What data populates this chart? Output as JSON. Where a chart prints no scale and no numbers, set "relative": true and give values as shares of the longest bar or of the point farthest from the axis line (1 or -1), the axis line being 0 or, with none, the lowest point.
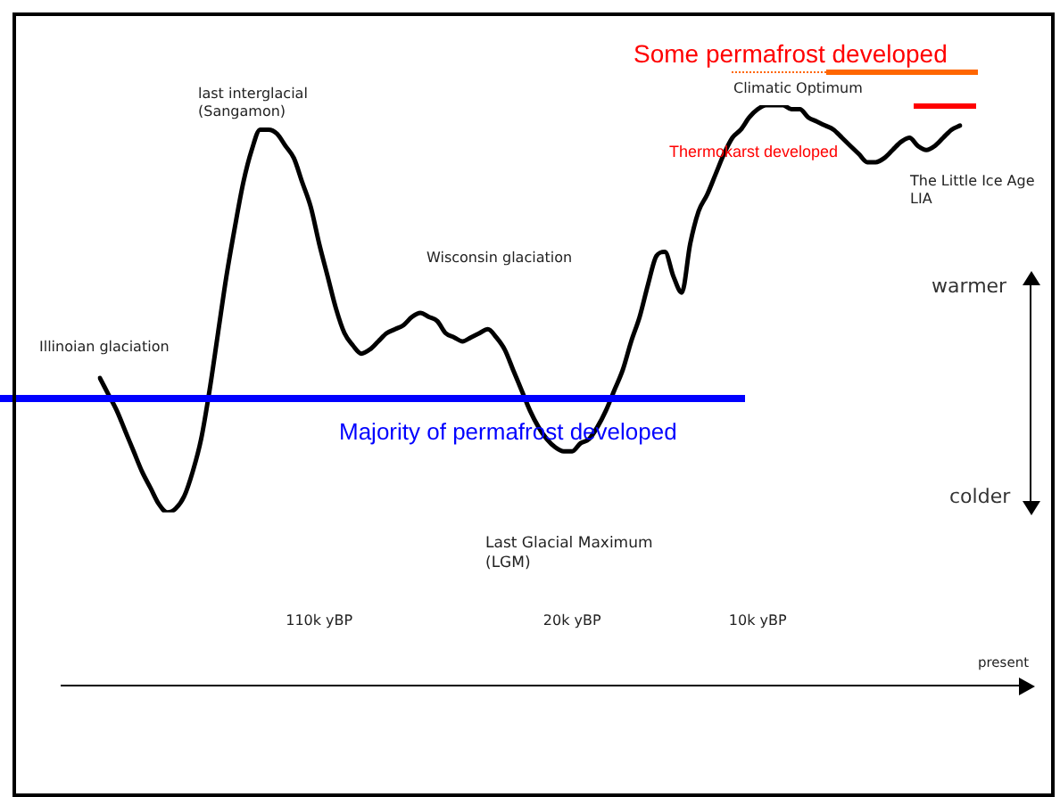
{
  "chart_data": {
    "type": "line",
    "relative": true,
    "grid": false,
    "legend": false,
    "marker": "none",
    "line_style": "solid",
    "categories": [
      null,
      null,
      null,
      null,
      null,
      null,
      null,
      null,
      null,
      null,
      null,
      null,
      null,
      null,
      null,
      null,
      null,
      null,
      null,
      null,
      null,
      null,
      null,
      null,
      null,
      null,
      "110k yBP",
      null,
      null,
      null,
      null,
      null,
      null,
      null,
      null,
      null,
      null,
      null,
      null,
      null,
      null,
      null,
      null,
      null,
      null,
      null,
      null,
      null,
      null,
      null,
      null,
      null,
      null,
      null,
      null,
      null,
      "20k yBP",
      null,
      null,
      null,
      null,
      null,
      null,
      null,
      null,
      null,
      null,
      null,
      null,
      null,
      null,
      null,
      null,
      null,
      null,
      null,
      null,
      null,
      "10k yBP",
      null,
      null,
      null,
      null,
      null,
      null,
      null,
      null,
      null,
      null,
      null,
      null,
      null,
      null,
      null,
      null,
      null,
      null,
      null,
      null,
      null,
      null,
      null,
      null
    ],
    "series": [
      {
        "color": "#000000",
        "values": [
          0.33,
          0.29,
          0.25,
          0.2,
          0.15,
          0.1,
          0.06,
          0.02,
          0,
          0.01,
          0.04,
          0.1,
          0.18,
          0.3,
          0.44,
          0.58,
          0.7,
          0.81,
          0.89,
          0.94,
          0.94,
          0.93,
          0.9,
          0.87,
          0.81,
          0.75,
          0.66,
          0.58,
          0.5,
          0.44,
          0.41,
          0.39,
          0.4,
          0.42,
          0.44,
          0.45,
          0.46,
          0.48,
          0.49,
          0.48,
          0.47,
          0.44,
          0.43,
          0.42,
          0.43,
          0.44,
          0.45,
          0.43,
          0.4,
          0.35,
          0.3,
          0.25,
          0.21,
          0.18,
          0.16,
          0.15,
          0.15,
          0.17,
          0.18,
          0.21,
          0.25,
          0.3,
          0.35,
          0.42,
          0.48,
          0.56,
          0.63,
          0.64,
          0.58,
          0.54,
          0.66,
          0.74,
          0.78,
          0.83,
          0.88,
          0.92,
          0.94,
          0.97,
          0.99,
          1,
          1,
          1,
          0.99,
          0.99,
          0.97,
          0.96,
          0.95,
          0.94,
          0.92,
          0.9,
          0.88,
          0.86,
          0.86,
          0.87,
          0.89,
          0.91,
          0.92,
          0.9,
          0.89,
          0.9,
          0.92,
          0.94,
          0.95
        ]
      }
    ],
    "ref_lines": [
      {
        "axis": "y",
        "value": 0.28,
        "label": "Majority of permafrost developed",
        "color": "#0000ff"
      }
    ],
    "annotations": [
      "Some permafrost developed",
      "last interglacial\n(Sangamon)",
      "Climatic Optimum",
      "Thermokarst developed",
      "The Little Ice Age\nLIA",
      "Wisconsin glaciation",
      "Illinoian glaciation",
      "warmer",
      "colder",
      "Last Glacial Maximum\n(LGM)",
      "present"
    ]
  }
}
